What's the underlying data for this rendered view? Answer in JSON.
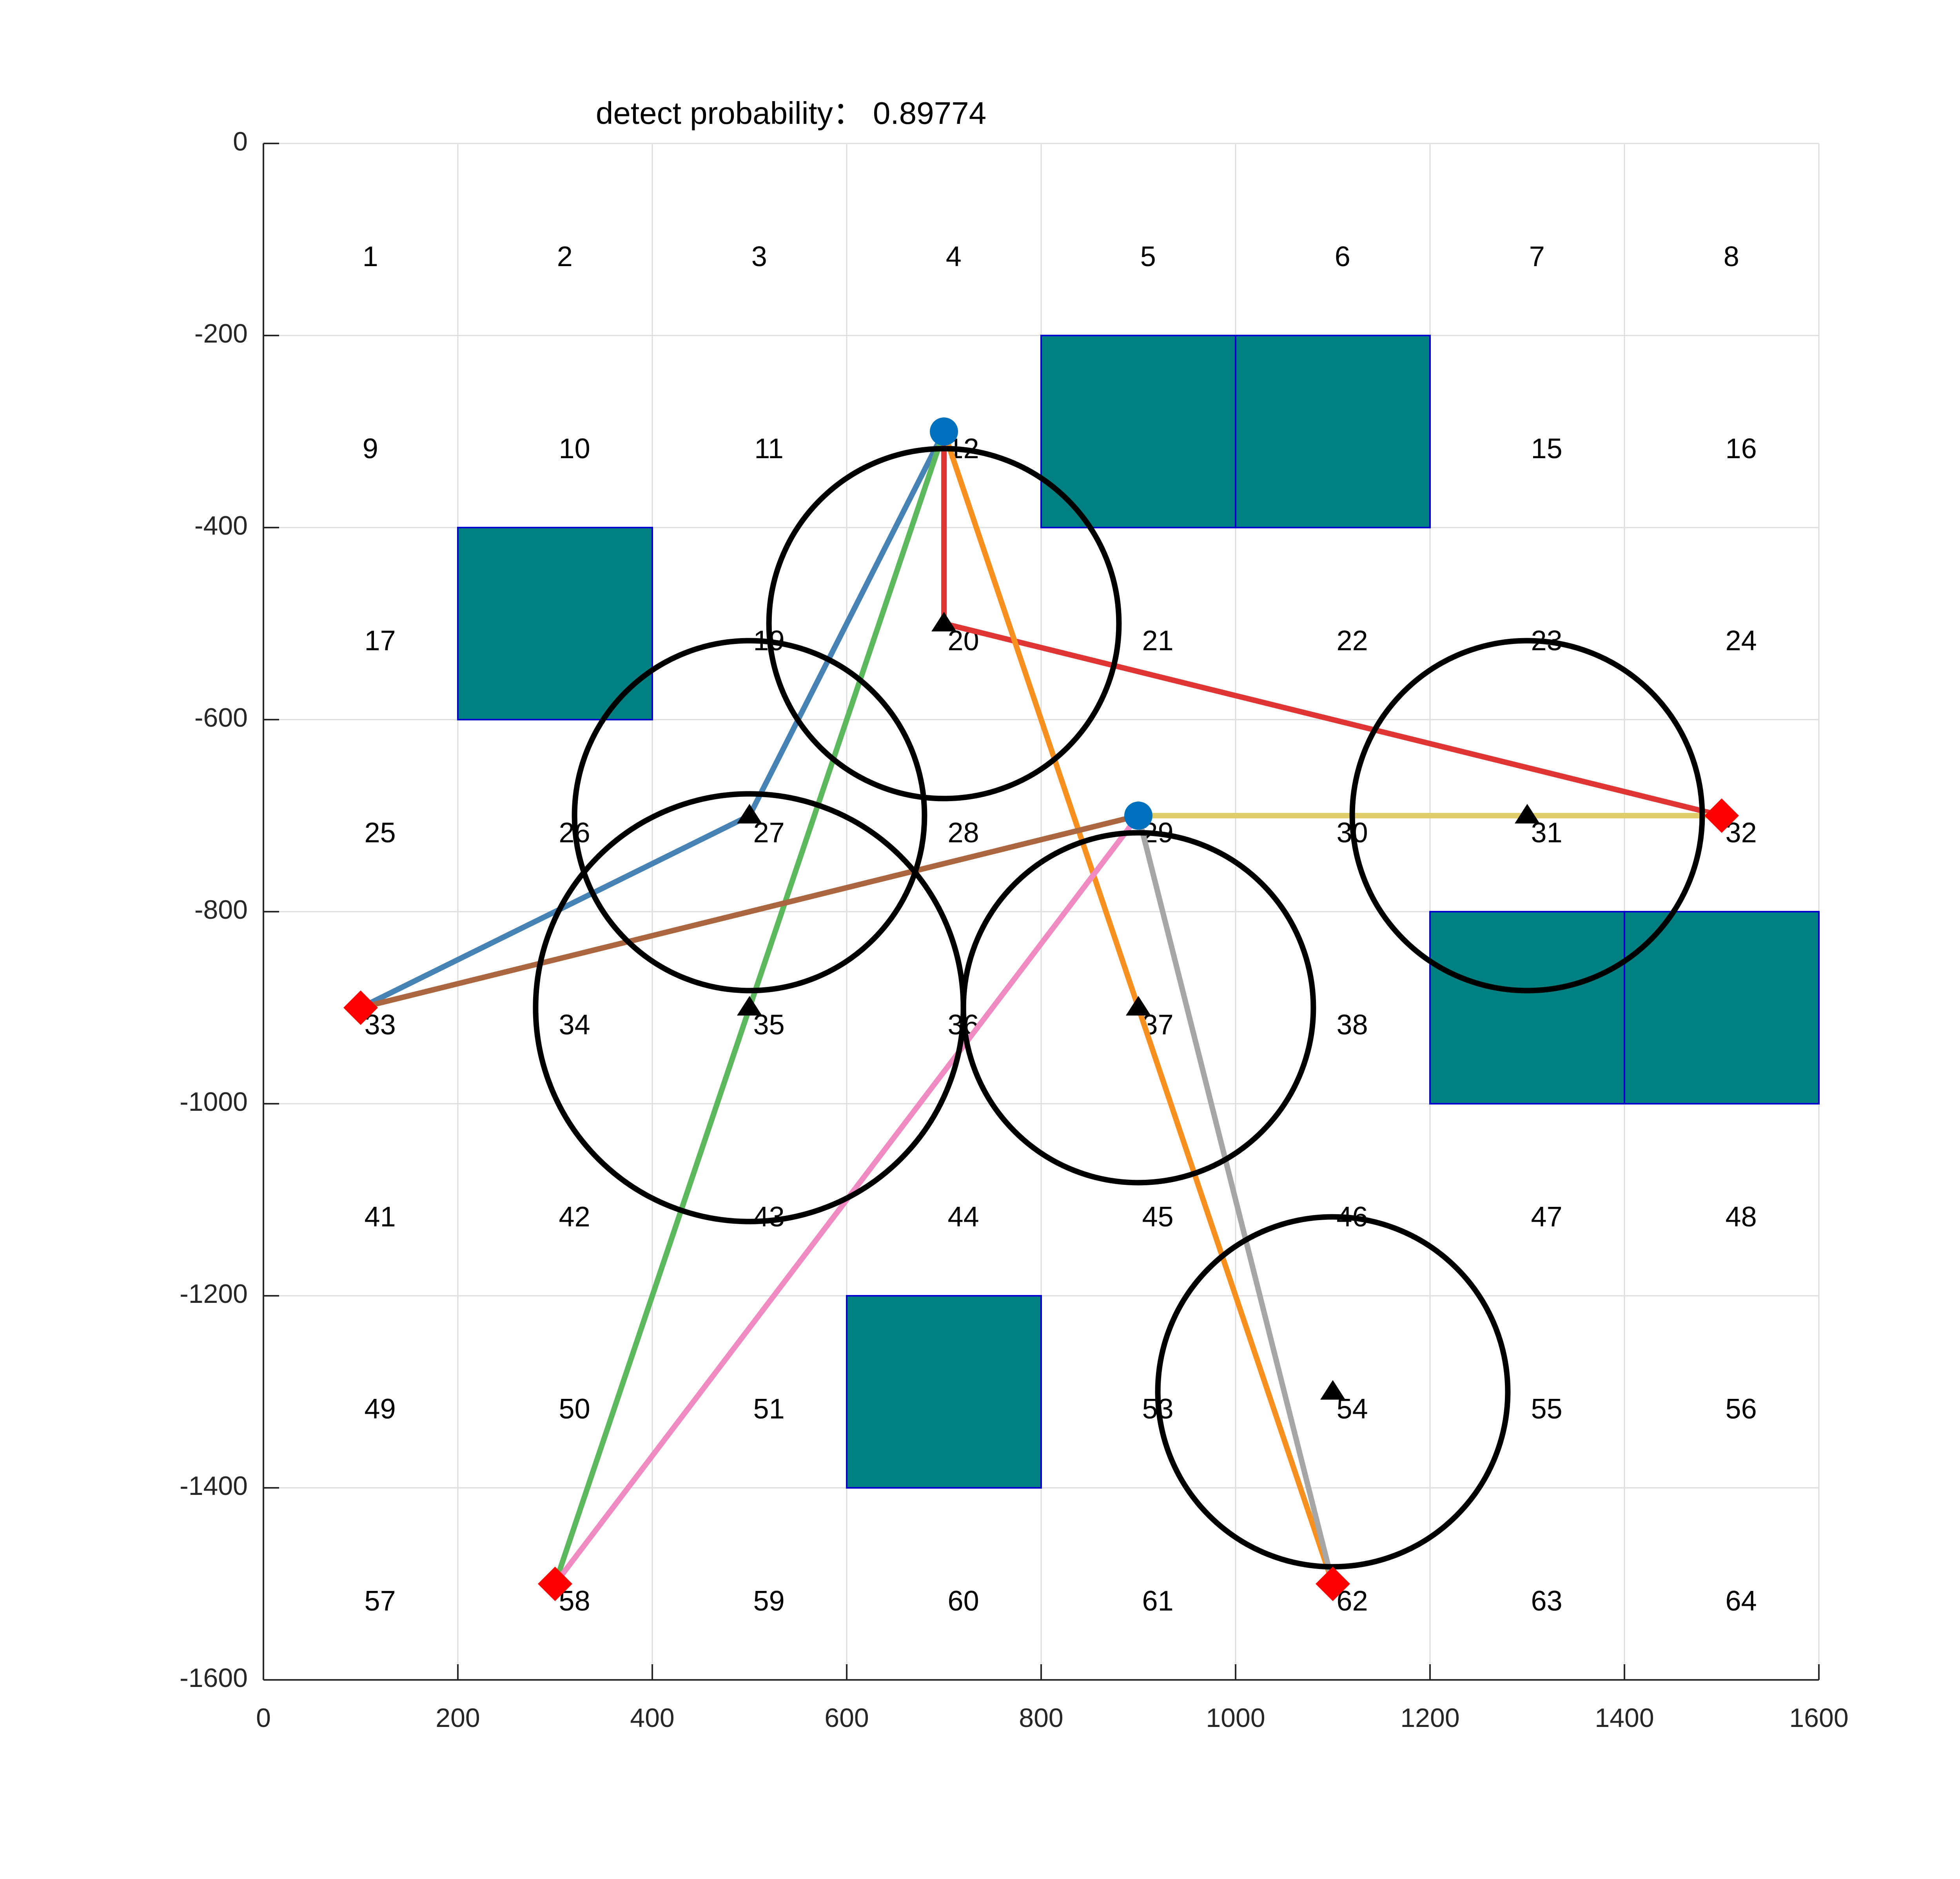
{
  "chart_data": {
    "type": "scatter",
    "title": "detect probability：  0.89774",
    "xlim": [
      0,
      1600
    ],
    "ylim": [
      -1600,
      0
    ],
    "xticks": [
      0,
      200,
      400,
      600,
      800,
      1000,
      1200,
      1400,
      1600
    ],
    "yticks": [
      0,
      -200,
      -400,
      -600,
      -800,
      -1000,
      -1200,
      -1400,
      -1600
    ],
    "grid": true,
    "grid_cells": {
      "size": 200,
      "labels": [
        {
          "text": "1",
          "x": 110,
          "y": -120
        },
        {
          "text": "2",
          "x": 310,
          "y": -120
        },
        {
          "text": "3",
          "x": 510,
          "y": -120
        },
        {
          "text": "4",
          "x": 710,
          "y": -120
        },
        {
          "text": "5",
          "x": 910,
          "y": -120
        },
        {
          "text": "6",
          "x": 1110,
          "y": -120
        },
        {
          "text": "7",
          "x": 1310,
          "y": -120
        },
        {
          "text": "8",
          "x": 1510,
          "y": -120
        },
        {
          "text": "9",
          "x": 110,
          "y": -320
        },
        {
          "text": "10",
          "x": 320,
          "y": -320
        },
        {
          "text": "11",
          "x": 520,
          "y": -320
        },
        {
          "text": "12",
          "x": 720,
          "y": -320
        },
        {
          "text": "15",
          "x": 1320,
          "y": -320
        },
        {
          "text": "16",
          "x": 1520,
          "y": -320
        },
        {
          "text": "17",
          "x": 120,
          "y": -520
        },
        {
          "text": "19",
          "x": 520,
          "y": -520
        },
        {
          "text": "20",
          "x": 720,
          "y": -520
        },
        {
          "text": "21",
          "x": 920,
          "y": -520
        },
        {
          "text": "22",
          "x": 1120,
          "y": -520
        },
        {
          "text": "23",
          "x": 1320,
          "y": -520
        },
        {
          "text": "24",
          "x": 1520,
          "y": -520
        },
        {
          "text": "25",
          "x": 120,
          "y": -720
        },
        {
          "text": "26",
          "x": 320,
          "y": -720
        },
        {
          "text": "27",
          "x": 520,
          "y": -720
        },
        {
          "text": "28",
          "x": 720,
          "y": -720
        },
        {
          "text": "29",
          "x": 920,
          "y": -720
        },
        {
          "text": "30",
          "x": 1120,
          "y": -720
        },
        {
          "text": "31",
          "x": 1320,
          "y": -720
        },
        {
          "text": "32",
          "x": 1520,
          "y": -720
        },
        {
          "text": "33",
          "x": 120,
          "y": -920
        },
        {
          "text": "34",
          "x": 320,
          "y": -920
        },
        {
          "text": "35",
          "x": 520,
          "y": -920
        },
        {
          "text": "36",
          "x": 720,
          "y": -920
        },
        {
          "text": "37",
          "x": 920,
          "y": -920
        },
        {
          "text": "38",
          "x": 1120,
          "y": -920
        },
        {
          "text": "41",
          "x": 120,
          "y": -1120
        },
        {
          "text": "42",
          "x": 320,
          "y": -1120
        },
        {
          "text": "43",
          "x": 520,
          "y": -1120
        },
        {
          "text": "44",
          "x": 720,
          "y": -1120
        },
        {
          "text": "45",
          "x": 920,
          "y": -1120
        },
        {
          "text": "46",
          "x": 1120,
          "y": -1120
        },
        {
          "text": "47",
          "x": 1320,
          "y": -1120
        },
        {
          "text": "48",
          "x": 1520,
          "y": -1120
        },
        {
          "text": "49",
          "x": 120,
          "y": -1320
        },
        {
          "text": "50",
          "x": 320,
          "y": -1320
        },
        {
          "text": "51",
          "x": 520,
          "y": -1320
        },
        {
          "text": "53",
          "x": 920,
          "y": -1320
        },
        {
          "text": "54",
          "x": 1120,
          "y": -1320
        },
        {
          "text": "55",
          "x": 1320,
          "y": -1320
        },
        {
          "text": "56",
          "x": 1520,
          "y": -1320
        },
        {
          "text": "57",
          "x": 120,
          "y": -1520
        },
        {
          "text": "58",
          "x": 320,
          "y": -1520
        },
        {
          "text": "59",
          "x": 520,
          "y": -1520
        },
        {
          "text": "60",
          "x": 720,
          "y": -1520
        },
        {
          "text": "61",
          "x": 920,
          "y": -1520
        },
        {
          "text": "62",
          "x": 1120,
          "y": -1520
        },
        {
          "text": "63",
          "x": 1320,
          "y": -1520
        },
        {
          "text": "64",
          "x": 1520,
          "y": -1520
        }
      ]
    },
    "obstacles": [
      {
        "x0": 800,
        "x1": 1000,
        "y0": -400,
        "y1": -200
      },
      {
        "x0": 1000,
        "x1": 1200,
        "y0": -400,
        "y1": -200
      },
      {
        "x0": 200,
        "x1": 400,
        "y0": -600,
        "y1": -400
      },
      {
        "x0": 1200,
        "x1": 1400,
        "y0": -1000,
        "y1": -800
      },
      {
        "x0": 1400,
        "x1": 1600,
        "y0": -1000,
        "y1": -800
      },
      {
        "x0": 600,
        "x1": 800,
        "y0": -1400,
        "y1": -1200
      }
    ],
    "sensors": [
      {
        "x": 700,
        "y": -500,
        "radius": 180
      },
      {
        "x": 500,
        "y": -700,
        "radius": 180
      },
      {
        "x": 500,
        "y": -900,
        "radius": 220
      },
      {
        "x": 900,
        "y": -900,
        "radius": 180
      },
      {
        "x": 1300,
        "y": -700,
        "radius": 180
      },
      {
        "x": 1100,
        "y": -1300,
        "radius": 180
      }
    ],
    "start_points": [
      {
        "x": 700,
        "y": -300
      },
      {
        "x": 900,
        "y": -700
      }
    ],
    "targets": [
      {
        "x": 100,
        "y": -900
      },
      {
        "x": 300,
        "y": -1500
      },
      {
        "x": 1500,
        "y": -700
      },
      {
        "x": 1100,
        "y": -1500
      }
    ],
    "series": [
      {
        "color": "#4682b4",
        "x": [
          700,
          500,
          100
        ],
        "y": [
          -300,
          -700,
          -900
        ]
      },
      {
        "color": "#5cb85c",
        "x": [
          700,
          500,
          300
        ],
        "y": [
          -300,
          -900,
          -1500
        ]
      },
      {
        "color": "#e03535",
        "x": [
          700,
          700,
          1500
        ],
        "y": [
          -300,
          -500,
          -700
        ]
      },
      {
        "color": "#f7901e",
        "x": [
          700,
          900,
          1100
        ],
        "y": [
          -300,
          -900,
          -1500
        ]
      },
      {
        "color": "#a9663f",
        "x": [
          900,
          100
        ],
        "y": [
          -700,
          -900
        ]
      },
      {
        "color": "#f08ac2",
        "x": [
          900,
          300
        ],
        "y": [
          -700,
          -1500
        ]
      },
      {
        "color": "#a6a6a6",
        "x": [
          900,
          1100
        ],
        "y": [
          -700,
          -1500
        ]
      },
      {
        "color": "#dfcd6c",
        "x": [
          900,
          1500
        ],
        "y": [
          -700,
          -700
        ]
      }
    ],
    "colors": {
      "obstacle_fill": "#008080",
      "obstacle_edge": "#0000cd",
      "sensor_circle": "#000000",
      "start_marker": "#0072bd",
      "target_marker": "#ff0000",
      "axis": "#262626",
      "grid": "#dddddd"
    }
  }
}
